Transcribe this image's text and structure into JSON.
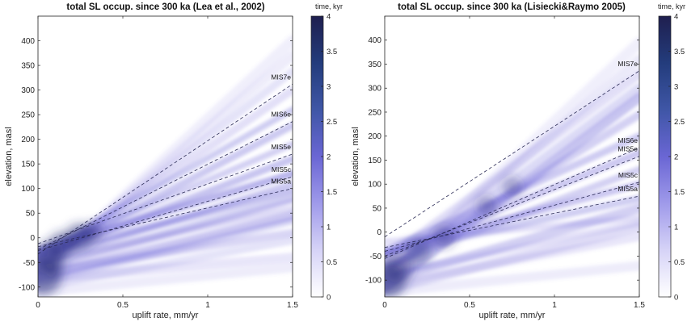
{
  "chart_data": [
    {
      "type": "heatmap",
      "title": "total SL occup. since 300 ka (Lea et al., 2002)",
      "xlabel": "uplift rate, mm/yr",
      "ylabel": "elevation, masl",
      "xlim": [
        0,
        1.5
      ],
      "ylim": [
        -120,
        450
      ],
      "xticks": [
        "0",
        "0.5",
        "1",
        "1.5"
      ],
      "yticks": [
        "-100",
        "-50",
        "0",
        "50",
        "100",
        "150",
        "200",
        "250",
        "300",
        "350",
        "400"
      ],
      "colorbar": {
        "label": "time, kyr",
        "range": [
          0,
          4
        ],
        "ticks": [
          "0",
          "0.5",
          "1",
          "1.5",
          "2",
          "2.5",
          "3",
          "3.5",
          "4"
        ],
        "colors": [
          "#ffffff",
          "#d6d3f7",
          "#9f9aea",
          "#6a66d4",
          "#3f56a6",
          "#233c7c",
          "#1f1f4f"
        ]
      },
      "dashed_lines": [
        {
          "name": "MIS7e",
          "y0": -33,
          "y1": 312
        },
        {
          "name": "MIS6e",
          "y0": -24,
          "y1": 236
        },
        {
          "name": "MIS5e",
          "y0": -12,
          "y1": 170
        },
        {
          "name": "MIS5c",
          "y0": -26,
          "y1": 124
        },
        {
          "name": "MIS5a",
          "y0": -18,
          "y1": 100
        }
      ],
      "bands": [
        {
          "y0": -78,
          "y1": 400,
          "w": 14,
          "o": 0.1
        },
        {
          "y0": -70,
          "y1": 370,
          "w": 12,
          "o": 0.12
        },
        {
          "y0": -62,
          "y1": 338,
          "w": 10,
          "o": 0.18
        },
        {
          "y0": -55,
          "y1": 300,
          "w": 10,
          "o": 0.2
        },
        {
          "y0": -35,
          "y1": 260,
          "w": 8,
          "o": 0.32
        },
        {
          "y0": -45,
          "y1": 228,
          "w": 9,
          "o": 0.35
        },
        {
          "y0": -30,
          "y1": 190,
          "w": 8,
          "o": 0.3
        },
        {
          "y0": -40,
          "y1": 160,
          "w": 9,
          "o": 0.38
        },
        {
          "y0": -25,
          "y1": 130,
          "w": 9,
          "o": 0.48
        },
        {
          "y0": -50,
          "y1": 110,
          "w": 8,
          "o": 0.35
        },
        {
          "y0": -35,
          "y1": 95,
          "w": 9,
          "o": 0.4
        },
        {
          "y0": -60,
          "y1": 80,
          "w": 9,
          "o": 0.32
        },
        {
          "y0": -80,
          "y1": 45,
          "w": 12,
          "o": 0.36
        },
        {
          "y0": -90,
          "y1": 35,
          "w": 10,
          "o": 0.24
        },
        {
          "y0": -70,
          "y1": 10,
          "w": 10,
          "o": 0.26
        },
        {
          "y0": -100,
          "y1": -5,
          "w": 10,
          "o": 0.18
        },
        {
          "y0": -85,
          "y1": -40,
          "w": 12,
          "o": 0.16
        },
        {
          "y0": -110,
          "y1": -60,
          "w": 12,
          "o": 0.12
        },
        {
          "y0": -50,
          "y1": 60,
          "w": 8,
          "o": 0.22
        },
        {
          "y0": -70,
          "y1": 75,
          "w": 7,
          "o": 0.2
        }
      ],
      "blobs": [
        {
          "x": 0.03,
          "y": -80,
          "r": 22,
          "o": 0.55
        },
        {
          "x": 0.06,
          "y": -38,
          "r": 18,
          "o": 0.55
        },
        {
          "x": 0.14,
          "y": -15,
          "r": 16,
          "o": 0.55
        },
        {
          "x": 0.24,
          "y": 2,
          "r": 16,
          "o": 0.55
        },
        {
          "x": 0.32,
          "y": 12,
          "r": 12,
          "o": 0.45
        },
        {
          "x": 0.1,
          "y": -60,
          "r": 12,
          "o": 0.4
        }
      ]
    },
    {
      "type": "heatmap",
      "title": "total SL occup. since 300 ka (Lisiecki&Raymo 2005)",
      "xlabel": "uplift rate, mm/yr",
      "ylabel": "elevation, masl",
      "xlim": [
        0,
        1.5
      ],
      "ylim": [
        -135,
        450
      ],
      "xticks": [
        "0",
        "0.5",
        "1",
        "1.5"
      ],
      "yticks": [
        "-100",
        "-50",
        "0",
        "50",
        "100",
        "150",
        "200",
        "250",
        "300",
        "350",
        "400"
      ],
      "colorbar": {
        "label": "time, kyr",
        "range": [
          0,
          4
        ],
        "ticks": [
          "0",
          "0.5",
          "1",
          "1.5",
          "2",
          "2.5",
          "3",
          "3.5",
          "4"
        ],
        "colors": [
          "#ffffff",
          "#d6d3f7",
          "#9f9aea",
          "#6a66d4",
          "#3f56a6",
          "#233c7c",
          "#1f1f4f"
        ]
      },
      "dashed_lines": [
        {
          "name": "MIS7e",
          "y0": -10,
          "y1": 336
        },
        {
          "name": "MIS6e",
          "y0": -55,
          "y1": 176
        },
        {
          "name": "MIS5e",
          "y0": -50,
          "y1": 158
        },
        {
          "name": "MIS5c",
          "y0": -40,
          "y1": 104
        },
        {
          "name": "MIS5a",
          "y0": -32,
          "y1": 75
        }
      ],
      "bands": [
        {
          "y0": -100,
          "y1": 395,
          "w": 14,
          "o": 0.1
        },
        {
          "y0": -95,
          "y1": 360,
          "w": 12,
          "o": 0.14
        },
        {
          "y0": -60,
          "y1": 330,
          "w": 12,
          "o": 0.2
        },
        {
          "y0": -90,
          "y1": 300,
          "w": 12,
          "o": 0.24
        },
        {
          "y0": -115,
          "y1": 280,
          "w": 12,
          "o": 0.38
        },
        {
          "y0": -80,
          "y1": 245,
          "w": 10,
          "o": 0.3
        },
        {
          "y0": -40,
          "y1": 200,
          "w": 9,
          "o": 0.34
        },
        {
          "y0": -50,
          "y1": 165,
          "w": 9,
          "o": 0.36
        },
        {
          "y0": -70,
          "y1": 130,
          "w": 9,
          "o": 0.3
        },
        {
          "y0": -40,
          "y1": 100,
          "w": 9,
          "o": 0.36
        },
        {
          "y0": -45,
          "y1": 70,
          "w": 9,
          "o": 0.32
        },
        {
          "y0": -100,
          "y1": 50,
          "w": 12,
          "o": 0.3
        },
        {
          "y0": -120,
          "y1": 10,
          "w": 12,
          "o": 0.22
        },
        {
          "y0": -110,
          "y1": -10,
          "w": 10,
          "o": 0.16
        },
        {
          "y0": -125,
          "y1": -70,
          "w": 12,
          "o": 0.12
        },
        {
          "y0": -20,
          "y1": 30,
          "w": 8,
          "o": 0.2
        },
        {
          "y0": -90,
          "y1": 20,
          "w": 8,
          "o": 0.2
        }
      ],
      "blobs": [
        {
          "x": 0.02,
          "y": -100,
          "r": 22,
          "o": 0.55
        },
        {
          "x": 0.08,
          "y": -75,
          "r": 18,
          "o": 0.45
        },
        {
          "x": 0.2,
          "y": -40,
          "r": 16,
          "o": 0.4
        },
        {
          "x": 0.35,
          "y": -10,
          "r": 14,
          "o": 0.35
        },
        {
          "x": 0.6,
          "y": 55,
          "r": 12,
          "o": 0.35
        },
        {
          "x": 0.75,
          "y": 95,
          "r": 12,
          "o": 0.35
        }
      ]
    }
  ]
}
